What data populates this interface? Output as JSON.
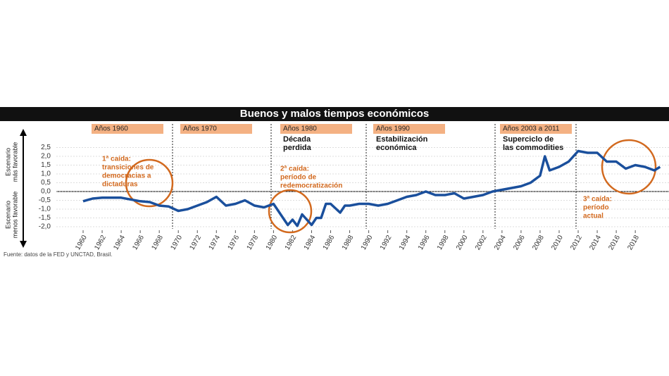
{
  "chart_data": {
    "type": "line",
    "title": "Buenos y malos tiempos económicos",
    "source": "Fuente: datos de la FED y UNCTAD, Brasil.",
    "y_labels": [
      [
        "Escenario",
        "más favorable"
      ],
      [
        "Escenario",
        "menos favorable"
      ]
    ],
    "periods": [
      {
        "label": "Años 1960",
        "note": []
      },
      {
        "label": "Años 1970",
        "note": []
      },
      {
        "label": "Años 1980",
        "note": [
          "Década",
          "perdida"
        ]
      },
      {
        "label": "Años 1990",
        "note": [
          "Estabilización",
          "económica"
        ]
      },
      {
        "label": "Años 2003 a 2011",
        "note": [
          "Superciclo de",
          "las commodities"
        ]
      }
    ],
    "callouts": [
      [
        "1ª caída:",
        "transiciones de",
        "democracias a",
        "dictaduras"
      ],
      [
        "2ª caída:",
        "período de",
        "redemocratización"
      ],
      [
        "3ª caída:",
        "período",
        "actual"
      ]
    ],
    "x": [
      1960,
      1961,
      1962,
      1963,
      1964,
      1965,
      1966,
      1967,
      1968,
      1969,
      1970,
      1971,
      1972,
      1973,
      1974,
      1975,
      1976,
      1977,
      1978,
      1979,
      1980,
      1981,
      1981.5,
      1982,
      1982.5,
      1983,
      1984,
      1984.5,
      1985,
      1985.5,
      1986,
      1987,
      1987.5,
      1988,
      1989,
      1990,
      1991,
      1992,
      1993,
      1994,
      1995,
      1996,
      1997,
      1998,
      1999,
      2000,
      2001,
      2002,
      2003,
      2004,
      2005,
      2006,
      2007,
      2008,
      2008.5,
      2009,
      2010,
      2011,
      2012,
      2013,
      2014,
      2015,
      2016,
      2017,
      2018,
      2019,
      2020,
      2020.6
    ],
    "series": [
      {
        "color": "#1a4f9c",
        "values": [
          -0.55,
          -0.4,
          -0.35,
          -0.35,
          -0.35,
          -0.45,
          -0.55,
          -0.6,
          -0.8,
          -0.85,
          -1.1,
          -1.0,
          -0.8,
          -0.6,
          -0.3,
          -0.8,
          -0.7,
          -0.5,
          -0.8,
          -0.9,
          -0.7,
          -1.5,
          -1.9,
          -1.6,
          -1.95,
          -1.3,
          -1.9,
          -1.5,
          -1.5,
          -0.7,
          -0.7,
          -1.2,
          -0.8,
          -0.8,
          -0.7,
          -0.7,
          -0.8,
          -0.7,
          -0.5,
          -0.3,
          -0.2,
          0.0,
          -0.2,
          -0.2,
          -0.1,
          -0.4,
          -0.3,
          -0.2,
          0.0,
          0.1,
          0.2,
          0.3,
          0.5,
          0.9,
          2.0,
          1.2,
          1.4,
          1.7,
          2.3,
          2.2,
          2.2,
          1.7,
          1.7,
          1.3,
          1.5,
          1.4,
          1.2,
          1.4
        ]
      }
    ],
    "xlim": [
      1959,
      2021
    ],
    "ylim": [
      -2.2,
      2.7
    ],
    "xticks": [
      1960,
      1962,
      1964,
      1966,
      1968,
      1970,
      1972,
      1974,
      1976,
      1978,
      1980,
      1982,
      1984,
      1986,
      1988,
      1990,
      1992,
      1994,
      1996,
      1998,
      2000,
      2002,
      2004,
      2006,
      2008,
      2010,
      2012,
      2014,
      2016,
      2018
    ],
    "yticks": [
      {
        "value": 2.5,
        "label": "2,5"
      },
      {
        "value": 2.0,
        "label": "2,0"
      },
      {
        "value": 1.5,
        "label": "1,5"
      },
      {
        "value": 1.0,
        "label": "1,0"
      },
      {
        "value": 0.5,
        "label": "0,5"
      },
      {
        "value": 0.0,
        "label": "0,0"
      },
      {
        "value": -0.5,
        "label": "-0,5"
      },
      {
        "value": -1.0,
        "label": "-1,0"
      },
      {
        "value": -1.5,
        "label": "-1,5"
      },
      {
        "value": -2.0,
        "label": "-2,0"
      }
    ],
    "grid": true
  }
}
